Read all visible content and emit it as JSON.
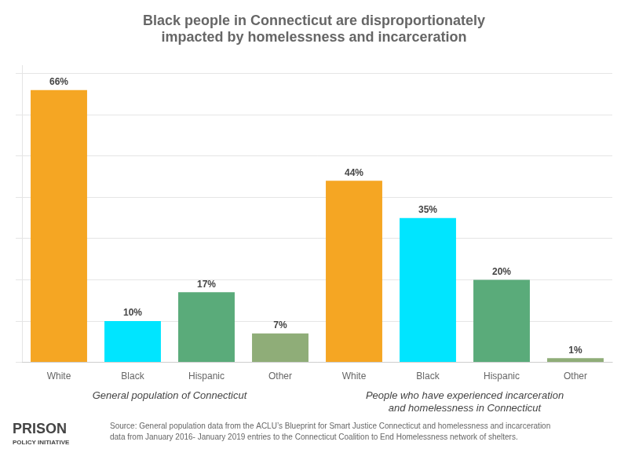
{
  "chart_data": {
    "type": "bar",
    "title": "Black people in Connecticut are disproportionately\nimpacted by homelessness and incarceration",
    "categories": [
      "White",
      "Black",
      "Hispanic",
      "Other",
      "White",
      "Black",
      "Hispanic",
      "Other"
    ],
    "values": [
      66,
      10,
      17,
      7,
      44,
      35,
      20,
      1
    ],
    "value_labels": [
      "66%",
      "10%",
      "17%",
      "7%",
      "44%",
      "35%",
      "20%",
      "1%"
    ],
    "colors": [
      "#f5a623",
      "#00e5ff",
      "#5aab7a",
      "#8fad78",
      "#f5a623",
      "#00e5ff",
      "#5aab7a",
      "#8fad78"
    ],
    "data_labels": true,
    "ylim": [
      0,
      72
    ],
    "yticks": [
      0,
      10,
      20,
      30,
      40,
      50,
      60,
      70
    ],
    "grid": true,
    "tick_labels": "x",
    "group_labels": [
      "General population of Connecticut",
      "People who have experienced incarceration\nand homelessness in Connecticut"
    ],
    "annotations": [
      "PRISON",
      "POLICY INITIATIVE"
    ],
    "source": "Source: General population data from the ACLU’s Blueprint for Smart Justice Connecticut and homelessness and incarceration\ndata from January 2016- January 2019 entries to the Connecticut Coalition to End Homelessness network of shelters."
  }
}
